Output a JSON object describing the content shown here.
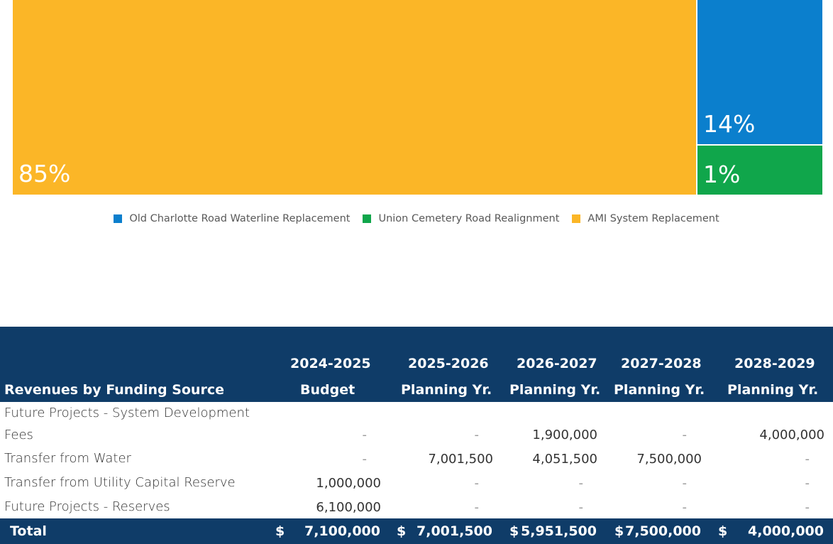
{
  "chart_data": {
    "type": "treemap",
    "items": [
      {
        "name": "AMI System Replacement",
        "percent": 85,
        "label": "85%",
        "color": "#fbb627"
      },
      {
        "name": "Old Charlotte Road Waterline Replacement",
        "percent": 14,
        "label": "14%",
        "color": "#0b7fcd"
      },
      {
        "name": "Union Cemetery Road Realignment",
        "percent": 1,
        "label": "1%",
        "color": "#10a64b"
      }
    ],
    "legend": [
      {
        "name": "Old Charlotte Road Waterline Replacement",
        "color": "#0b7fcd"
      },
      {
        "name": "Union Cemetery Road Realignment",
        "color": "#10a64b"
      },
      {
        "name": "AMI System Replacement",
        "color": "#fbb627"
      }
    ]
  },
  "table": {
    "title": "Revenues by Funding Source",
    "columns": [
      {
        "line1": "2024-2025",
        "line2": "Budget"
      },
      {
        "line1": "2025-2026",
        "line2": "Planning Yr."
      },
      {
        "line1": "2026-2027",
        "line2": "Planning Yr."
      },
      {
        "line1": "2027-2028",
        "line2": "Planning Yr."
      },
      {
        "line1": "2028-2029",
        "line2": "Planning Yr."
      }
    ],
    "rows": [
      {
        "label_line1": "Future Projects - System Development",
        "label_line2": "Fees",
        "values": [
          "-",
          "-",
          "1,900,000",
          "-",
          "4,000,000"
        ]
      },
      {
        "label": "Transfer from Water",
        "values": [
          "-",
          "7,001,500",
          "4,051,500",
          "7,500,000",
          "-"
        ]
      },
      {
        "label": "Transfer from Utility Capital Reserve",
        "values": [
          "1,000,000",
          "-",
          "-",
          "-",
          "-"
        ]
      },
      {
        "label": "Future Projects - Reserves",
        "values": [
          "6,100,000",
          "-",
          "-",
          "-",
          "-"
        ]
      }
    ],
    "total": {
      "label": "Total",
      "currency": "$",
      "values": [
        "7,100,000",
        "7,001,500",
        "5,951,500",
        "7,500,000",
        "4,000,000"
      ]
    }
  }
}
